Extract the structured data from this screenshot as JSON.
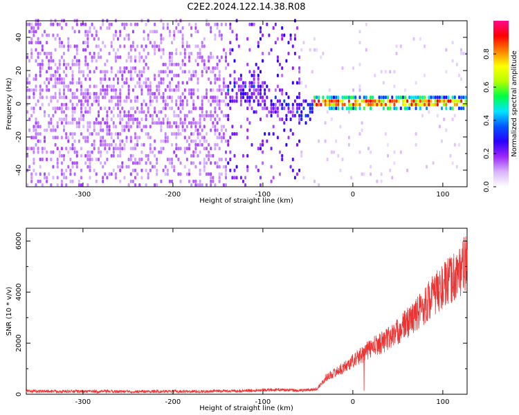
{
  "title": "C2E2.2024.122.14.38.R08",
  "chart_data": [
    {
      "type": "heatmap",
      "xlabel": "Height of straight line (km)",
      "ylabel": "Frequency (Hz)",
      "xlim": [
        -363,
        127
      ],
      "ylim": [
        -50,
        50
      ],
      "xticks": [
        -300,
        -200,
        -100,
        0,
        100
      ],
      "yticks": [
        -40,
        -20,
        0,
        20,
        40
      ],
      "colorbar": {
        "label": "Normalized spectral amplitude",
        "range": [
          0,
          1
        ],
        "ticks": [
          0.0,
          0.2,
          0.4,
          0.6,
          0.8
        ],
        "colors": [
          "#ffffff",
          "#d9b3ff",
          "#9c27ff",
          "#2b00ff",
          "#0055ff",
          "#00e5ff",
          "#00ff40",
          "#b6ff00",
          "#ffff00",
          "#ff8000",
          "#ff0000",
          "#ff0a8c"
        ]
      },
      "regions": [
        {
          "x": [
            -363,
            -140
          ],
          "freq_spread": "full band",
          "amplitude": "0.05-0.2 (scattered)"
        },
        {
          "x": [
            -140,
            -60
          ],
          "freq_center": [
            8,
            -5
          ],
          "amplitude": "0.2-0.35"
        },
        {
          "x": [
            -60,
            127
          ],
          "freq_center": 0,
          "freq_halfwidth": 4,
          "amplitude": "0.4-0.9"
        }
      ]
    },
    {
      "type": "line",
      "xlabel": "Height of straight line (km)",
      "ylabel": "SNR (10 * v/v)",
      "xlim": [
        -363,
        127
      ],
      "ylim": [
        0,
        6500
      ],
      "xticks": [
        -300,
        -200,
        -100,
        0,
        100
      ],
      "yticks": [
        0,
        2000,
        4000,
        6000
      ],
      "series": [
        {
          "color": "#ee3333",
          "x": [
            -363,
            -300,
            -250,
            -200,
            -150,
            -120,
            -100,
            -80,
            -60,
            -40,
            -30,
            -20,
            -10,
            0,
            10,
            20,
            30,
            40,
            50,
            60,
            70,
            80,
            90,
            100,
            110,
            120,
            127
          ],
          "y": [
            120,
            110,
            110,
            110,
            120,
            140,
            170,
            180,
            140,
            200,
            650,
            850,
            1050,
            1300,
            1550,
            1800,
            2000,
            2200,
            2450,
            2800,
            3100,
            3500,
            3900,
            4200,
            4500,
            4900,
            5200
          ]
        }
      ]
    }
  ]
}
